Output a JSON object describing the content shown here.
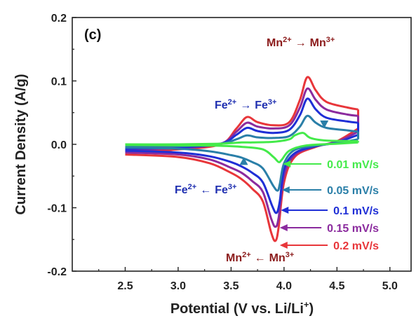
{
  "chart_data": {
    "type": "line",
    "panel_label": "(c)",
    "xlabel_main": "Potential (V vs. Li/Li",
    "xlabel_sup": "+",
    "xlabel_close": ")",
    "ylabel": "Current Density (A/g)",
    "xlim": [
      2.0,
      5.2
    ],
    "ylim": [
      -0.2,
      0.2
    ],
    "xticks": [
      2.5,
      3.0,
      3.5,
      4.0,
      4.5,
      5.0
    ],
    "xtick_labels": [
      "2.5",
      "3.0",
      "3.5",
      "4.0",
      "4.5",
      "5.0"
    ],
    "yticks": [
      -0.2,
      -0.1,
      0.0,
      0.1,
      0.2
    ],
    "ytick_labels": [
      "-0.2",
      "-0.1",
      "0.0",
      "0.1",
      "0.2"
    ],
    "grid": false,
    "annotations": {
      "fe_ox": {
        "ion1": "Fe",
        "sup1": "2+",
        "arrow": "→",
        "ion2": "Fe",
        "sup2": "3+",
        "color": "#1f2fb0"
      },
      "mn_ox": {
        "ion1": "Mn",
        "sup1": "2+",
        "arrow": "→",
        "ion2": "Mn",
        "sup2": "3+",
        "color": "#8b1a1a"
      },
      "fe_red": {
        "ion1": "Fe",
        "sup1": "2+",
        "arrow": "←",
        "ion2": "Fe",
        "sup2": "3+",
        "color": "#1f2fb0"
      },
      "mn_red": {
        "ion1": "Mn",
        "sup1": "2+",
        "arrow": "←",
        "ion2": "Mn",
        "sup2": "3+",
        "color": "#8b1a1a"
      }
    },
    "series": [
      {
        "name": "0.2 mV/s",
        "color": "#e8363a",
        "anodic": [
          [
            2.5,
            -0.012
          ],
          [
            3.0,
            -0.008
          ],
          [
            3.4,
            0.0
          ],
          [
            3.55,
            0.025
          ],
          [
            3.65,
            0.043
          ],
          [
            3.75,
            0.035
          ],
          [
            3.9,
            0.03
          ],
          [
            4.05,
            0.035
          ],
          [
            4.15,
            0.07
          ],
          [
            4.22,
            0.106
          ],
          [
            4.3,
            0.085
          ],
          [
            4.4,
            0.067
          ],
          [
            4.6,
            0.058
          ],
          [
            4.7,
            0.055
          ]
        ],
        "cathodic": [
          [
            4.7,
            0.025
          ],
          [
            4.5,
            0.005
          ],
          [
            4.3,
            -0.004
          ],
          [
            4.1,
            -0.02
          ],
          [
            4.0,
            -0.06
          ],
          [
            3.95,
            -0.13
          ],
          [
            3.92,
            -0.152
          ],
          [
            3.88,
            -0.14
          ],
          [
            3.8,
            -0.09
          ],
          [
            3.7,
            -0.07
          ],
          [
            3.6,
            -0.055
          ],
          [
            3.5,
            -0.045
          ],
          [
            3.3,
            -0.03
          ],
          [
            3.0,
            -0.02
          ],
          [
            2.5,
            -0.016
          ]
        ],
        "peak": [
          3.92,
          -0.152
        ]
      },
      {
        "name": "0.15 mV/s",
        "color": "#8b2b9e",
        "anodic": [
          [
            2.5,
            -0.009
          ],
          [
            3.0,
            -0.006
          ],
          [
            3.4,
            0.001
          ],
          [
            3.55,
            0.02
          ],
          [
            3.65,
            0.034
          ],
          [
            3.75,
            0.028
          ],
          [
            3.9,
            0.025
          ],
          [
            4.05,
            0.03
          ],
          [
            4.15,
            0.058
          ],
          [
            4.22,
            0.088
          ],
          [
            4.3,
            0.07
          ],
          [
            4.4,
            0.055
          ],
          [
            4.6,
            0.047
          ],
          [
            4.7,
            0.045
          ]
        ],
        "cathodic": [
          [
            4.7,
            0.02
          ],
          [
            4.5,
            0.004
          ],
          [
            4.3,
            -0.003
          ],
          [
            4.1,
            -0.017
          ],
          [
            4.0,
            -0.05
          ],
          [
            3.95,
            -0.115
          ],
          [
            3.92,
            -0.13
          ],
          [
            3.88,
            -0.118
          ],
          [
            3.8,
            -0.075
          ],
          [
            3.7,
            -0.058
          ],
          [
            3.6,
            -0.045
          ],
          [
            3.5,
            -0.037
          ],
          [
            3.3,
            -0.024
          ],
          [
            3.0,
            -0.016
          ],
          [
            2.5,
            -0.013
          ]
        ],
        "peak": [
          3.92,
          -0.13
        ]
      },
      {
        "name": "0.1 mV/s",
        "color": "#1f2fd6",
        "anodic": [
          [
            2.5,
            -0.007
          ],
          [
            3.0,
            -0.005
          ],
          [
            3.4,
            0.001
          ],
          [
            3.55,
            0.015
          ],
          [
            3.65,
            0.026
          ],
          [
            3.75,
            0.021
          ],
          [
            3.9,
            0.018
          ],
          [
            4.05,
            0.023
          ],
          [
            4.15,
            0.046
          ],
          [
            4.22,
            0.072
          ],
          [
            4.3,
            0.055
          ],
          [
            4.4,
            0.042
          ],
          [
            4.6,
            0.036
          ],
          [
            4.7,
            0.034
          ]
        ],
        "cathodic": [
          [
            4.7,
            0.015
          ],
          [
            4.5,
            0.003
          ],
          [
            4.3,
            -0.003
          ],
          [
            4.1,
            -0.014
          ],
          [
            4.0,
            -0.04
          ],
          [
            3.96,
            -0.09
          ],
          [
            3.93,
            -0.108
          ],
          [
            3.89,
            -0.098
          ],
          [
            3.8,
            -0.06
          ],
          [
            3.7,
            -0.045
          ],
          [
            3.6,
            -0.035
          ],
          [
            3.5,
            -0.028
          ],
          [
            3.3,
            -0.019
          ],
          [
            3.0,
            -0.013
          ],
          [
            2.5,
            -0.01
          ]
        ],
        "peak": [
          3.93,
          -0.108
        ]
      },
      {
        "name": "0.05 mV/s",
        "color": "#2a7fa8",
        "anodic": [
          [
            2.5,
            -0.004
          ],
          [
            3.0,
            -0.003
          ],
          [
            3.4,
            0.001
          ],
          [
            3.55,
            0.008
          ],
          [
            3.65,
            0.014
          ],
          [
            3.75,
            0.011
          ],
          [
            3.9,
            0.01
          ],
          [
            4.05,
            0.013
          ],
          [
            4.15,
            0.028
          ],
          [
            4.22,
            0.045
          ],
          [
            4.3,
            0.034
          ],
          [
            4.4,
            0.026
          ],
          [
            4.6,
            0.022
          ],
          [
            4.7,
            0.02
          ]
        ],
        "cathodic": [
          [
            4.7,
            0.008
          ],
          [
            4.5,
            0.002
          ],
          [
            4.3,
            -0.002
          ],
          [
            4.1,
            -0.009
          ],
          [
            4.0,
            -0.03
          ],
          [
            3.96,
            -0.063
          ],
          [
            3.94,
            -0.073
          ],
          [
            3.9,
            -0.066
          ],
          [
            3.8,
            -0.038
          ],
          [
            3.7,
            -0.028
          ],
          [
            3.6,
            -0.021
          ],
          [
            3.5,
            -0.017
          ],
          [
            3.3,
            -0.011
          ],
          [
            3.0,
            -0.007
          ],
          [
            2.5,
            -0.005
          ]
        ],
        "peak": [
          3.94,
          -0.073
        ]
      },
      {
        "name": "0.01 mV/s",
        "color": "#44ea4a",
        "anodic": [
          [
            2.5,
            0.0
          ],
          [
            3.0,
            0.0
          ],
          [
            3.4,
            0.001
          ],
          [
            3.6,
            0.003
          ],
          [
            3.7,
            0.003
          ],
          [
            3.9,
            0.004
          ],
          [
            4.05,
            0.008
          ],
          [
            4.1,
            0.014
          ],
          [
            4.18,
            0.018
          ],
          [
            4.25,
            0.01
          ],
          [
            4.4,
            0.006
          ],
          [
            4.7,
            0.005
          ]
        ],
        "cathodic": [
          [
            4.7,
            0.003
          ],
          [
            4.5,
            0.001
          ],
          [
            4.2,
            -0.002
          ],
          [
            4.05,
            -0.01
          ],
          [
            3.98,
            -0.024
          ],
          [
            3.95,
            -0.028
          ],
          [
            3.9,
            -0.02
          ],
          [
            3.8,
            -0.008
          ],
          [
            3.6,
            -0.004
          ],
          [
            3.3,
            -0.002
          ],
          [
            2.5,
            -0.001
          ]
        ],
        "peak": [
          3.95,
          -0.028
        ]
      }
    ]
  }
}
